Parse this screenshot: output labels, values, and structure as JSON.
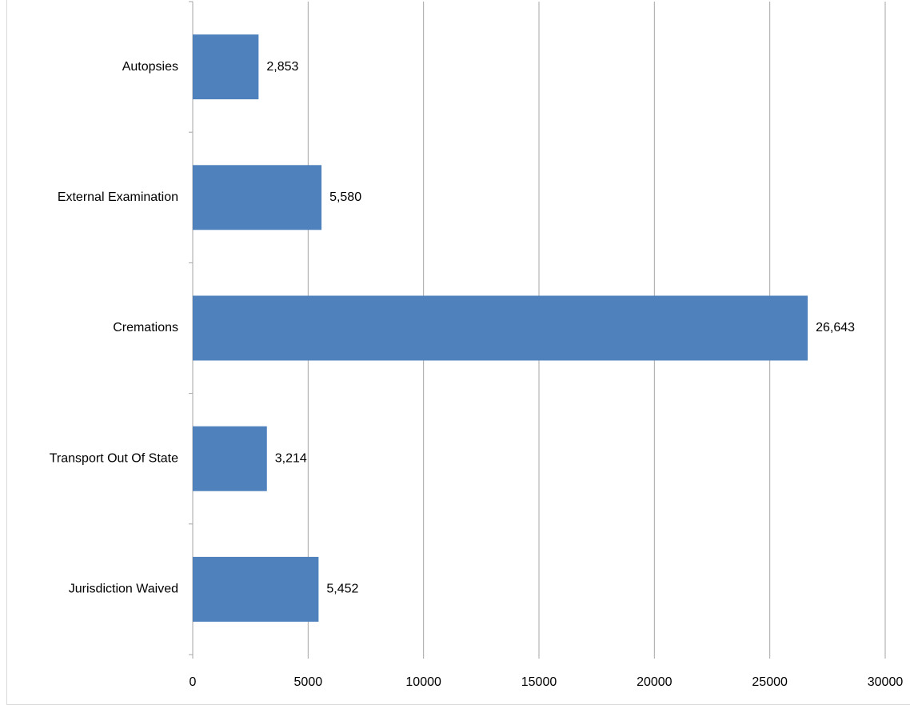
{
  "chart_data": {
    "type": "bar",
    "orientation": "horizontal",
    "categories": [
      "Autopsies",
      "External Examination",
      "Cremations",
      "Transport Out Of State",
      "Jurisdiction Waived"
    ],
    "values": [
      2853,
      5580,
      26643,
      3214,
      5452
    ],
    "data_labels": [
      "2,853",
      "5,580",
      "26,643",
      "3,214",
      "5,452"
    ],
    "xlim": [
      0,
      30000
    ],
    "x_ticks": [
      0,
      5000,
      10000,
      15000,
      20000,
      25000,
      30000
    ],
    "x_tick_labels": [
      "0",
      "5000",
      "10000",
      "15000",
      "20000",
      "25000",
      "30000"
    ],
    "grid": "vertical",
    "legend": "none",
    "bar_color": "#4F81BD",
    "grid_color": "#A6A6A6",
    "title": "",
    "xlabel": "",
    "ylabel": ""
  }
}
